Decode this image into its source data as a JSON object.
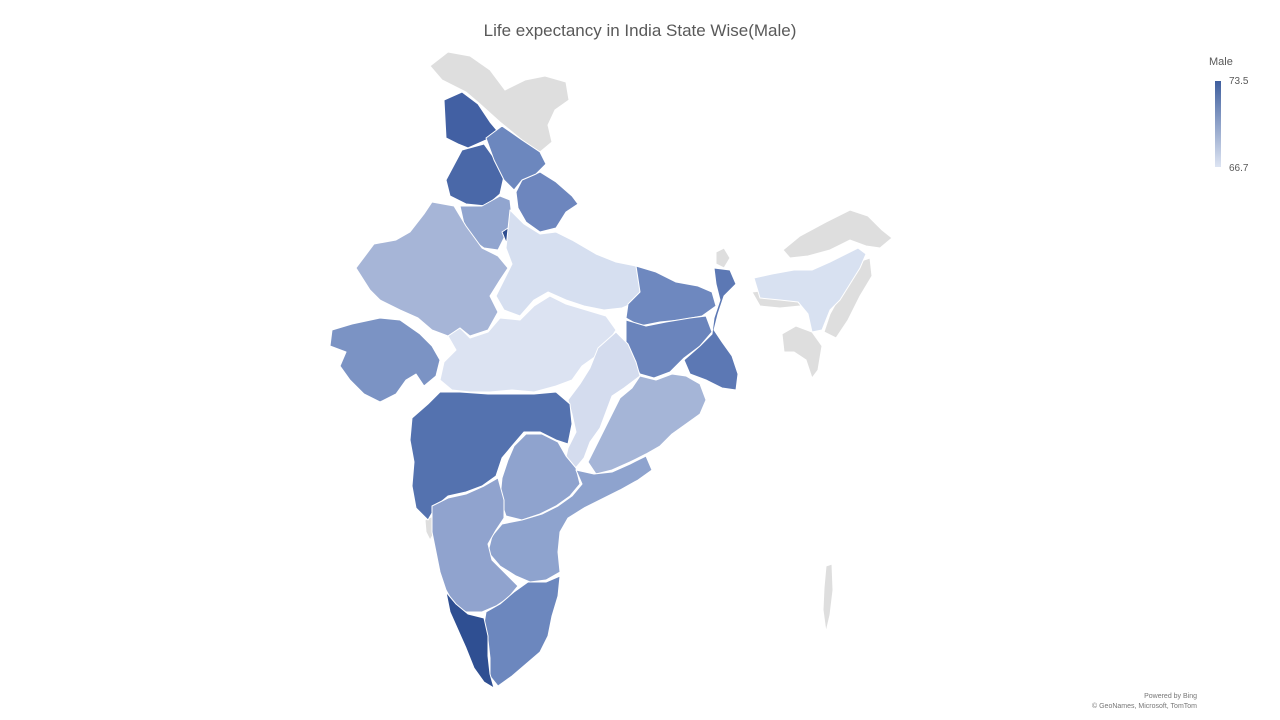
{
  "title": "Life expectancy in India State Wise(Male)",
  "legend": {
    "title": "Male",
    "max_label": "73.5",
    "min_label": "66.7",
    "color_high": "#3F5F9E",
    "color_low": "#DDE4F2"
  },
  "nodata_color": "#DEDEDE",
  "attribution": {
    "line1": "Powered by Bing",
    "line2": "© GeoNames, Microsoft, TomTom"
  }
}
